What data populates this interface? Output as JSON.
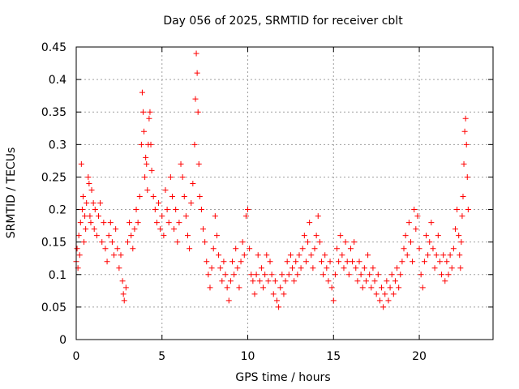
{
  "chart_data": {
    "type": "scatter",
    "title": "Day 056 of 2025, SRMTID for receiver cblt",
    "xlabel": "GPS time / hours",
    "ylabel": "SRMTID / TECUs",
    "xlim": [
      0,
      24.3
    ],
    "ylim": [
      0,
      0.45
    ],
    "x_ticks": [
      0,
      5,
      10,
      15,
      20
    ],
    "x_tick_labels": [
      "0",
      "5",
      "10",
      "15",
      "20"
    ],
    "y_ticks": [
      0,
      0.05,
      0.1,
      0.15,
      0.2,
      0.25,
      0.3,
      0.35,
      0.4,
      0.45
    ],
    "y_tick_labels": [
      "0",
      "0.05",
      "0.1",
      "0.15",
      "0.2",
      "0.25",
      "0.3",
      "0.35",
      "0.4",
      "0.45"
    ],
    "grid": true,
    "marker": "+",
    "color": "#ff0000",
    "series": [
      {
        "name": "SRMTID",
        "points": [
          [
            0.0,
            0.12
          ],
          [
            0.05,
            0.14
          ],
          [
            0.1,
            0.11
          ],
          [
            0.15,
            0.16
          ],
          [
            0.2,
            0.13
          ],
          [
            0.25,
            0.18
          ],
          [
            0.3,
            0.27
          ],
          [
            0.35,
            0.2
          ],
          [
            0.4,
            0.22
          ],
          [
            0.45,
            0.15
          ],
          [
            0.5,
            0.19
          ],
          [
            0.55,
            0.17
          ],
          [
            0.6,
            0.21
          ],
          [
            0.7,
            0.25
          ],
          [
            0.75,
            0.24
          ],
          [
            0.8,
            0.19
          ],
          [
            0.85,
            0.18
          ],
          [
            0.9,
            0.23
          ],
          [
            1.0,
            0.21
          ],
          [
            1.05,
            0.17
          ],
          [
            1.1,
            0.2
          ],
          [
            1.2,
            0.16
          ],
          [
            1.3,
            0.19
          ],
          [
            1.4,
            0.21
          ],
          [
            1.5,
            0.15
          ],
          [
            1.6,
            0.18
          ],
          [
            1.7,
            0.14
          ],
          [
            1.8,
            0.12
          ],
          [
            1.9,
            0.16
          ],
          [
            2.0,
            0.18
          ],
          [
            2.1,
            0.15
          ],
          [
            2.2,
            0.13
          ],
          [
            2.3,
            0.17
          ],
          [
            2.4,
            0.14
          ],
          [
            2.5,
            0.11
          ],
          [
            2.6,
            0.13
          ],
          [
            2.7,
            0.09
          ],
          [
            2.75,
            0.07
          ],
          [
            2.8,
            0.06
          ],
          [
            2.9,
            0.08
          ],
          [
            3.0,
            0.15
          ],
          [
            3.1,
            0.18
          ],
          [
            3.2,
            0.16
          ],
          [
            3.3,
            0.14
          ],
          [
            3.4,
            0.17
          ],
          [
            3.5,
            0.2
          ],
          [
            3.6,
            0.18
          ],
          [
            3.7,
            0.22
          ],
          [
            3.8,
            0.3
          ],
          [
            3.85,
            0.38
          ],
          [
            3.9,
            0.35
          ],
          [
            3.95,
            0.32
          ],
          [
            4.0,
            0.25
          ],
          [
            4.05,
            0.28
          ],
          [
            4.1,
            0.27
          ],
          [
            4.15,
            0.23
          ],
          [
            4.2,
            0.3
          ],
          [
            4.25,
            0.34
          ],
          [
            4.3,
            0.35
          ],
          [
            4.35,
            0.3
          ],
          [
            4.4,
            0.26
          ],
          [
            4.5,
            0.22
          ],
          [
            4.6,
            0.2
          ],
          [
            4.7,
            0.18
          ],
          [
            4.8,
            0.21
          ],
          [
            4.9,
            0.17
          ],
          [
            5.0,
            0.19
          ],
          [
            5.1,
            0.16
          ],
          [
            5.2,
            0.23
          ],
          [
            5.3,
            0.2
          ],
          [
            5.4,
            0.18
          ],
          [
            5.5,
            0.25
          ],
          [
            5.6,
            0.22
          ],
          [
            5.7,
            0.17
          ],
          [
            5.8,
            0.2
          ],
          [
            5.9,
            0.15
          ],
          [
            6.0,
            0.18
          ],
          [
            6.1,
            0.27
          ],
          [
            6.2,
            0.25
          ],
          [
            6.3,
            0.22
          ],
          [
            6.4,
            0.19
          ],
          [
            6.5,
            0.16
          ],
          [
            6.6,
            0.14
          ],
          [
            6.7,
            0.21
          ],
          [
            6.8,
            0.24
          ],
          [
            6.9,
            0.3
          ],
          [
            6.95,
            0.37
          ],
          [
            7.0,
            0.44
          ],
          [
            7.05,
            0.41
          ],
          [
            7.1,
            0.35
          ],
          [
            7.15,
            0.27
          ],
          [
            7.2,
            0.22
          ],
          [
            7.3,
            0.2
          ],
          [
            7.4,
            0.17
          ],
          [
            7.5,
            0.15
          ],
          [
            7.6,
            0.12
          ],
          [
            7.7,
            0.1
          ],
          [
            7.8,
            0.08
          ],
          [
            7.9,
            0.11
          ],
          [
            8.0,
            0.14
          ],
          [
            8.1,
            0.19
          ],
          [
            8.2,
            0.16
          ],
          [
            8.3,
            0.13
          ],
          [
            8.4,
            0.11
          ],
          [
            8.5,
            0.09
          ],
          [
            8.6,
            0.12
          ],
          [
            8.7,
            0.1
          ],
          [
            8.8,
            0.08
          ],
          [
            8.9,
            0.06
          ],
          [
            9.0,
            0.09
          ],
          [
            9.1,
            0.12
          ],
          [
            9.2,
            0.1
          ],
          [
            9.3,
            0.14
          ],
          [
            9.4,
            0.11
          ],
          [
            9.5,
            0.08
          ],
          [
            9.6,
            0.12
          ],
          [
            9.7,
            0.15
          ],
          [
            9.8,
            0.13
          ],
          [
            9.9,
            0.19
          ],
          [
            10.0,
            0.2
          ],
          [
            10.1,
            0.14
          ],
          [
            10.2,
            0.1
          ],
          [
            10.3,
            0.09
          ],
          [
            10.4,
            0.07
          ],
          [
            10.5,
            0.1
          ],
          [
            10.6,
            0.13
          ],
          [
            10.7,
            0.09
          ],
          [
            10.8,
            0.11
          ],
          [
            10.9,
            0.08
          ],
          [
            11.0,
            0.1
          ],
          [
            11.1,
            0.13
          ],
          [
            11.2,
            0.09
          ],
          [
            11.3,
            0.12
          ],
          [
            11.4,
            0.1
          ],
          [
            11.5,
            0.07
          ],
          [
            11.6,
            0.09
          ],
          [
            11.7,
            0.06
          ],
          [
            11.8,
            0.05
          ],
          [
            11.9,
            0.08
          ],
          [
            12.0,
            0.1
          ],
          [
            12.1,
            0.07
          ],
          [
            12.2,
            0.09
          ],
          [
            12.3,
            0.12
          ],
          [
            12.4,
            0.1
          ],
          [
            12.5,
            0.13
          ],
          [
            12.6,
            0.11
          ],
          [
            12.7,
            0.09
          ],
          [
            12.8,
            0.12
          ],
          [
            12.9,
            0.1
          ],
          [
            13.0,
            0.13
          ],
          [
            13.1,
            0.11
          ],
          [
            13.2,
            0.14
          ],
          [
            13.3,
            0.16
          ],
          [
            13.4,
            0.12
          ],
          [
            13.5,
            0.15
          ],
          [
            13.6,
            0.18
          ],
          [
            13.7,
            0.13
          ],
          [
            13.8,
            0.11
          ],
          [
            13.9,
            0.14
          ],
          [
            14.0,
            0.16
          ],
          [
            14.1,
            0.19
          ],
          [
            14.2,
            0.15
          ],
          [
            14.3,
            0.12
          ],
          [
            14.4,
            0.1
          ],
          [
            14.5,
            0.13
          ],
          [
            14.6,
            0.11
          ],
          [
            14.7,
            0.09
          ],
          [
            14.8,
            0.12
          ],
          [
            14.9,
            0.08
          ],
          [
            15.0,
            0.06
          ],
          [
            15.1,
            0.1
          ],
          [
            15.2,
            0.14
          ],
          [
            15.3,
            0.12
          ],
          [
            15.4,
            0.16
          ],
          [
            15.5,
            0.13
          ],
          [
            15.6,
            0.11
          ],
          [
            15.7,
            0.15
          ],
          [
            15.8,
            0.12
          ],
          [
            15.9,
            0.1
          ],
          [
            16.0,
            0.14
          ],
          [
            16.1,
            0.12
          ],
          [
            16.2,
            0.15
          ],
          [
            16.3,
            0.11
          ],
          [
            16.4,
            0.09
          ],
          [
            16.5,
            0.12
          ],
          [
            16.6,
            0.1
          ],
          [
            16.7,
            0.08
          ],
          [
            16.8,
            0.11
          ],
          [
            16.9,
            0.09
          ],
          [
            17.0,
            0.13
          ],
          [
            17.1,
            0.1
          ],
          [
            17.2,
            0.08
          ],
          [
            17.3,
            0.11
          ],
          [
            17.4,
            0.09
          ],
          [
            17.5,
            0.07
          ],
          [
            17.6,
            0.1
          ],
          [
            17.7,
            0.06
          ],
          [
            17.8,
            0.08
          ],
          [
            17.9,
            0.05
          ],
          [
            18.0,
            0.07
          ],
          [
            18.1,
            0.09
          ],
          [
            18.2,
            0.06
          ],
          [
            18.3,
            0.08
          ],
          [
            18.4,
            0.1
          ],
          [
            18.5,
            0.07
          ],
          [
            18.6,
            0.09
          ],
          [
            18.7,
            0.11
          ],
          [
            18.8,
            0.08
          ],
          [
            18.9,
            0.1
          ],
          [
            19.0,
            0.12
          ],
          [
            19.1,
            0.14
          ],
          [
            19.2,
            0.16
          ],
          [
            19.3,
            0.13
          ],
          [
            19.4,
            0.18
          ],
          [
            19.5,
            0.15
          ],
          [
            19.6,
            0.12
          ],
          [
            19.7,
            0.2
          ],
          [
            19.8,
            0.17
          ],
          [
            19.9,
            0.19
          ],
          [
            20.0,
            0.14
          ],
          [
            20.1,
            0.1
          ],
          [
            20.2,
            0.08
          ],
          [
            20.3,
            0.12
          ],
          [
            20.4,
            0.16
          ],
          [
            20.5,
            0.13
          ],
          [
            20.6,
            0.15
          ],
          [
            20.7,
            0.18
          ],
          [
            20.8,
            0.14
          ],
          [
            20.9,
            0.11
          ],
          [
            21.0,
            0.13
          ],
          [
            21.1,
            0.16
          ],
          [
            21.2,
            0.12
          ],
          [
            21.3,
            0.1
          ],
          [
            21.4,
            0.13
          ],
          [
            21.5,
            0.09
          ],
          [
            21.6,
            0.12
          ],
          [
            21.7,
            0.1
          ],
          [
            21.8,
            0.13
          ],
          [
            21.9,
            0.11
          ],
          [
            22.0,
            0.14
          ],
          [
            22.1,
            0.17
          ],
          [
            22.2,
            0.2
          ],
          [
            22.3,
            0.16
          ],
          [
            22.35,
            0.13
          ],
          [
            22.4,
            0.11
          ],
          [
            22.45,
            0.15
          ],
          [
            22.5,
            0.19
          ],
          [
            22.55,
            0.22
          ],
          [
            22.6,
            0.27
          ],
          [
            22.65,
            0.32
          ],
          [
            22.7,
            0.34
          ],
          [
            22.75,
            0.3
          ],
          [
            22.8,
            0.25
          ],
          [
            22.85,
            0.2
          ]
        ]
      }
    ]
  }
}
